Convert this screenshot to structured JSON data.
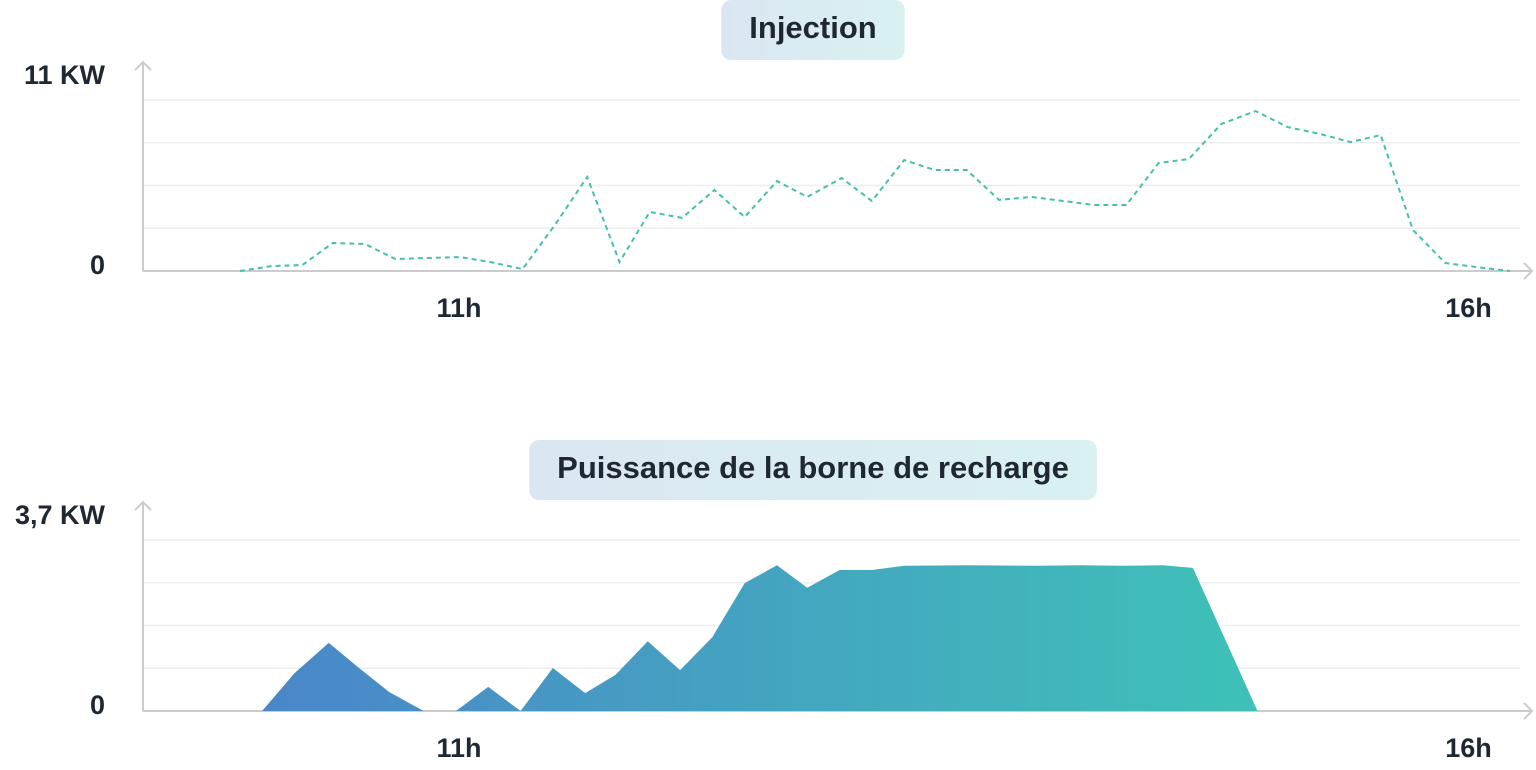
{
  "chart_data": [
    {
      "type": "line",
      "title": "Injection",
      "color": "#45bfb0",
      "dashed": true,
      "x": [
        9.91,
        10.07,
        10.22,
        10.37,
        10.53,
        10.68,
        10.84,
        11.0,
        11.15,
        11.31,
        11.47,
        11.63,
        11.79,
        11.94,
        12.1,
        12.26,
        12.41,
        12.57,
        12.72,
        12.89,
        13.04,
        13.2,
        13.35,
        13.51,
        13.67,
        13.83,
        13.99,
        14.14,
        14.3,
        14.46,
        14.61,
        14.77,
        14.94,
        15.1,
        15.26,
        15.41,
        15.56,
        15.72,
        15.88,
        16.03,
        16.2
      ],
      "values": [
        0,
        0.28,
        0.34,
        1.59,
        1.53,
        0.68,
        0.74,
        0.79,
        0.51,
        0.11,
        2.61,
        5.33,
        0.51,
        3.35,
        3.01,
        4.59,
        3.06,
        5.1,
        4.2,
        5.27,
        3.97,
        6.29,
        5.73,
        5.73,
        4.03,
        4.2,
        3.97,
        3.74,
        3.74,
        6.12,
        6.35,
        8.33,
        9.07,
        8.16,
        7.77,
        7.31,
        7.71,
        2.32,
        0.45,
        0.23,
        0
      ],
      "xlim": [
        9.43,
        16.25
      ],
      "xticks": [
        {
          "value": 11,
          "label": "11h"
        },
        {
          "value": 16,
          "label": "16h"
        }
      ],
      "ylim": [
        0,
        11
      ],
      "yticks": [
        0,
        {
          "value": 11,
          "label": "11 KW"
        }
      ]
    },
    {
      "type": "area",
      "title": "Puissance de la borne de recharge",
      "gradient": [
        "#4a86c9",
        "#3ec1b8"
      ],
      "x": [
        10.02,
        10.18,
        10.35,
        10.5,
        10.65,
        10.82,
        10.98,
        11.14,
        11.3,
        11.46,
        11.62,
        11.77,
        11.93,
        12.09,
        12.25,
        12.41,
        12.57,
        12.72,
        12.88,
        13.04,
        13.2,
        13.51,
        13.87,
        14.07,
        14.27,
        14.48,
        14.63,
        14.95
      ],
      "values": [
        0,
        0.72,
        1.3,
        0.82,
        0.36,
        0,
        0,
        0.46,
        0,
        0.82,
        0.34,
        0.69,
        1.33,
        0.78,
        1.41,
        2.44,
        2.78,
        2.35,
        2.69,
        2.69,
        2.77,
        2.78,
        2.77,
        2.78,
        2.77,
        2.78,
        2.73,
        0
      ],
      "xlim": [
        9.43,
        16.25
      ],
      "xticks": [
        {
          "value": 11,
          "label": "11h"
        },
        {
          "value": 16,
          "label": "16h"
        }
      ],
      "ylim": [
        0,
        3.7
      ],
      "yticks": [
        0,
        {
          "value": 3.7,
          "label": "3,7 KW"
        }
      ]
    }
  ]
}
